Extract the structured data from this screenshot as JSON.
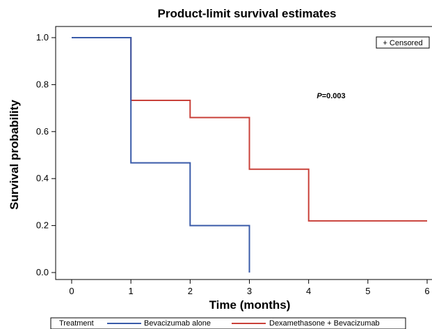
{
  "chart_data": {
    "type": "line",
    "step": true,
    "title": "Product-limit survival estimates",
    "xlabel": "Time (months)",
    "ylabel": "Survival probability",
    "xlim": [
      0,
      6
    ],
    "ylim": [
      0,
      1
    ],
    "x_ticks": [
      "0",
      "1",
      "2",
      "3",
      "4",
      "5",
      "6"
    ],
    "y_ticks": [
      "0.0",
      "0.2",
      "0.4",
      "0.6",
      "0.8",
      "1.0"
    ],
    "grid": false,
    "legend": {
      "position": "bottom",
      "title": "Treatment",
      "censored_label": "+ Censored",
      "censored_position": "top-right"
    },
    "annotation": {
      "italic": "P",
      "rest": "=0.003"
    },
    "series": [
      {
        "name": "Bevacizumab alone",
        "color": "#3a5ba9",
        "points": [
          [
            0,
            1.0
          ],
          [
            1,
            1.0
          ],
          [
            1,
            0.467
          ],
          [
            2,
            0.467
          ],
          [
            2,
            0.2
          ],
          [
            3,
            0.2
          ],
          [
            3,
            0.0
          ]
        ]
      },
      {
        "name": "Dexamethasone + Bevacizumab",
        "color": "#c9413a",
        "points": [
          [
            0,
            1.0
          ],
          [
            1,
            1.0
          ],
          [
            1,
            0.733
          ],
          [
            2,
            0.733
          ],
          [
            2,
            0.66
          ],
          [
            3,
            0.66
          ],
          [
            3,
            0.44
          ],
          [
            4,
            0.44
          ],
          [
            4,
            0.22
          ],
          [
            6,
            0.22
          ]
        ]
      }
    ]
  }
}
